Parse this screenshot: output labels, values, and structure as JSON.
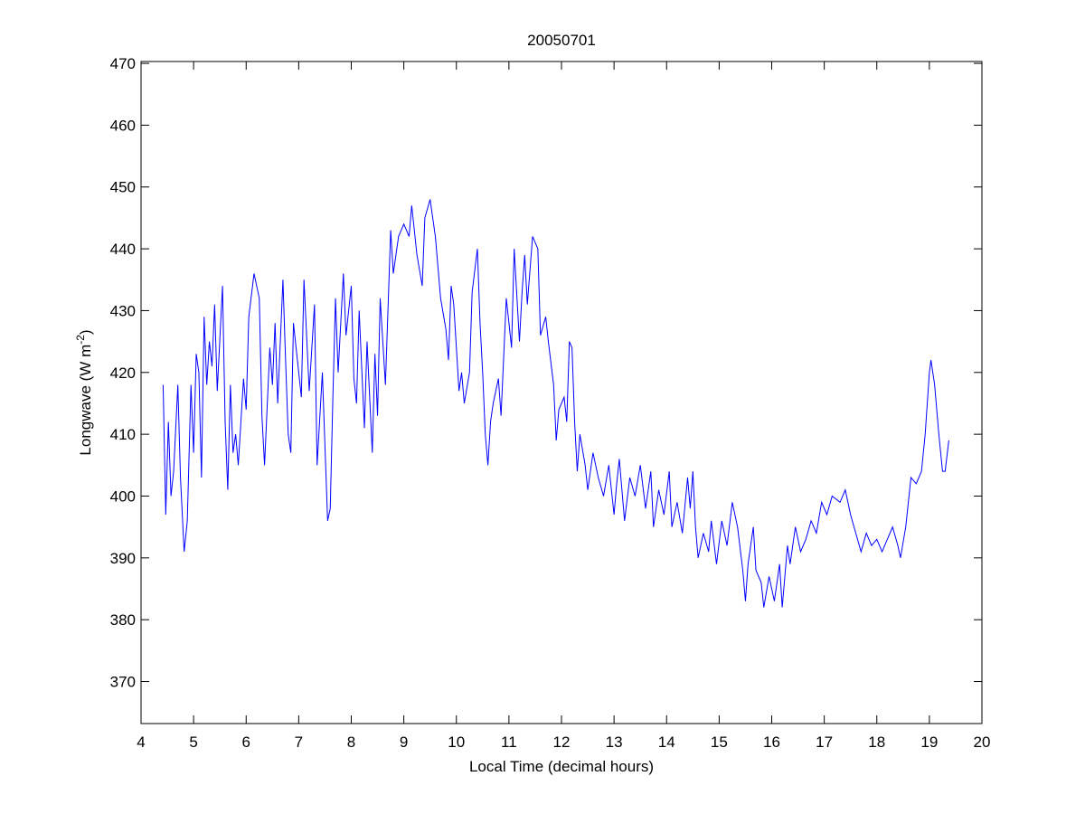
{
  "chart_data": {
    "type": "line",
    "title": "20050701",
    "xlabel": "Local Time (decimal hours)",
    "ylabel_parts": [
      "Longwave (W m",
      "-2",
      ")"
    ],
    "xlim": [
      4,
      20
    ],
    "ylim": [
      363.2,
      470.3
    ],
    "xticks": [
      4,
      5,
      6,
      7,
      8,
      9,
      10,
      11,
      12,
      13,
      14,
      15,
      16,
      17,
      18,
      19,
      20
    ],
    "yticks": [
      370,
      380,
      390,
      400,
      410,
      420,
      430,
      440,
      450,
      460,
      470
    ],
    "grid": false,
    "x": [
      4.42,
      4.47,
      4.52,
      4.57,
      4.62,
      4.7,
      4.75,
      4.82,
      4.88,
      4.95,
      5.0,
      5.05,
      5.1,
      5.15,
      5.2,
      5.25,
      5.3,
      5.35,
      5.4,
      5.45,
      5.55,
      5.6,
      5.65,
      5.7,
      5.75,
      5.8,
      5.85,
      5.95,
      6.0,
      6.05,
      6.15,
      6.25,
      6.3,
      6.35,
      6.45,
      6.5,
      6.55,
      6.6,
      6.7,
      6.75,
      6.8,
      6.85,
      6.9,
      7.0,
      7.05,
      7.1,
      7.2,
      7.3,
      7.35,
      7.45,
      7.55,
      7.6,
      7.65,
      7.7,
      7.75,
      7.85,
      7.9,
      8.0,
      8.05,
      8.1,
      8.15,
      8.25,
      8.3,
      8.4,
      8.45,
      8.5,
      8.55,
      8.65,
      8.75,
      8.8,
      8.9,
      9.0,
      9.1,
      9.15,
      9.25,
      9.35,
      9.4,
      9.5,
      9.6,
      9.7,
      9.8,
      9.85,
      9.9,
      9.95,
      10.05,
      10.1,
      10.15,
      10.25,
      10.3,
      10.4,
      10.45,
      10.5,
      10.55,
      10.6,
      10.65,
      10.7,
      10.8,
      10.85,
      10.95,
      11.0,
      11.05,
      11.1,
      11.2,
      11.25,
      11.3,
      11.35,
      11.45,
      11.55,
      11.6,
      11.7,
      11.75,
      11.85,
      11.9,
      11.95,
      12.05,
      12.1,
      12.15,
      12.2,
      12.25,
      12.3,
      12.35,
      12.45,
      12.5,
      12.6,
      12.7,
      12.8,
      12.9,
      13.0,
      13.05,
      13.1,
      13.2,
      13.3,
      13.4,
      13.5,
      13.6,
      13.7,
      13.75,
      13.85,
      13.95,
      14.05,
      14.1,
      14.2,
      14.3,
      14.4,
      14.45,
      14.5,
      14.55,
      14.6,
      14.7,
      14.8,
      14.85,
      14.95,
      15.05,
      15.15,
      15.25,
      15.35,
      15.45,
      15.5,
      15.55,
      15.65,
      15.7,
      15.8,
      15.85,
      15.95,
      16.05,
      16.15,
      16.2,
      16.3,
      16.35,
      16.45,
      16.55,
      16.65,
      16.75,
      16.85,
      16.95,
      17.05,
      17.15,
      17.3,
      17.4,
      17.5,
      17.6,
      17.7,
      17.8,
      17.9,
      18.0,
      18.1,
      18.2,
      18.3,
      18.4,
      18.45,
      18.55,
      18.65,
      18.75,
      18.85,
      18.92,
      19.0,
      19.03,
      19.1,
      19.18,
      19.25,
      19.3,
      19.37
    ],
    "series": [
      {
        "color": "#0000ff",
        "values": [
          418,
          397,
          412,
          400,
          404,
          418,
          403,
          391,
          396,
          418,
          407,
          423,
          420,
          403,
          429,
          418,
          425,
          421,
          431,
          417,
          434,
          412,
          401,
          418,
          407,
          410,
          405,
          419,
          414,
          429,
          436,
          432,
          413,
          405,
          424,
          418,
          428,
          415,
          435,
          422,
          410,
          407,
          428,
          420,
          416,
          435,
          417,
          431,
          405,
          420,
          396,
          398,
          416,
          432,
          420,
          436,
          426,
          434,
          419,
          415,
          430,
          411,
          425,
          407,
          423,
          413,
          432,
          418,
          443,
          436,
          442,
          444,
          442,
          447,
          439,
          434,
          445,
          448,
          442,
          432,
          427,
          422,
          434,
          431,
          417,
          420,
          415,
          420,
          433,
          440,
          428,
          420,
          410,
          405,
          412,
          415,
          419,
          413,
          432,
          428,
          424,
          440,
          425,
          433,
          439,
          431,
          442,
          440,
          426,
          429,
          425,
          418,
          409,
          414,
          416,
          412,
          425,
          424,
          412,
          404,
          410,
          405,
          401,
          407,
          403,
          400,
          405,
          397,
          402,
          406,
          396,
          403,
          400,
          405,
          398,
          404,
          395,
          401,
          397,
          404,
          395,
          399,
          394,
          403,
          398,
          404,
          395,
          390,
          394,
          391,
          396,
          389,
          396,
          392,
          399,
          395,
          388,
          383,
          389,
          395,
          388,
          386,
          382,
          387,
          383,
          389,
          382,
          392,
          389,
          395,
          391,
          393,
          396,
          394,
          399,
          397,
          400,
          399,
          401,
          397,
          394,
          391,
          394,
          392,
          393,
          391,
          393,
          395,
          392,
          390,
          395,
          403,
          402,
          404,
          410,
          420,
          422,
          418,
          410,
          404,
          404,
          409
        ]
      }
    ]
  }
}
